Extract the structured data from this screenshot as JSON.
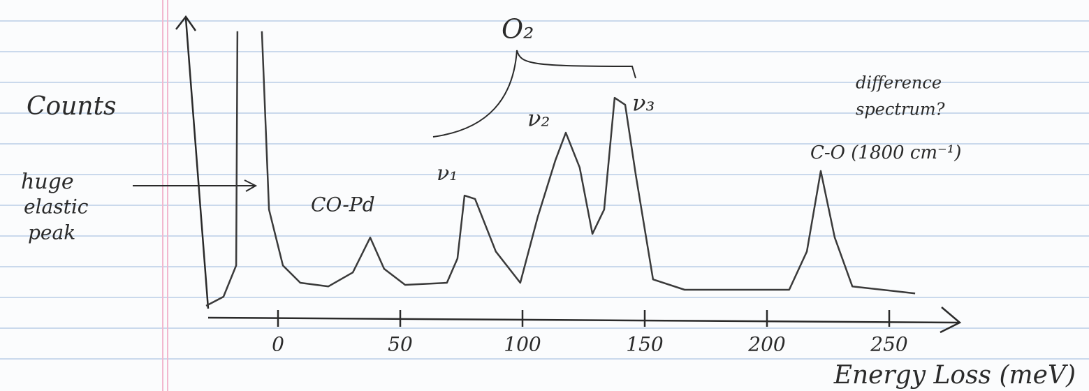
{
  "chart_data": {
    "type": "line",
    "y_label": "Counts",
    "x_label": "Energy Loss (meV)",
    "annotations": [
      "huge",
      "elastic",
      "peak",
      "CO-Pd",
      "ν₁",
      "ν₂",
      "ν₃",
      "O₂",
      "difference",
      "spectrum?",
      "C-O (1800 cm⁻¹)"
    ],
    "x": [
      -29.4,
      -22.3,
      -17.1,
      -16.6,
      -12,
      -6.6,
      -3.7,
      2,
      9.1,
      20.6,
      30.6,
      37.7,
      43.4,
      52,
      69.1,
      73.4,
      76.3,
      80.6,
      89.1,
      99.1,
      106.3,
      113.4,
      117.7,
      123.4,
      128.6,
      133.4,
      137.7,
      142,
      146.3,
      153.4,
      166.3,
      209.1,
      216.3,
      222,
      227.7,
      234.9,
      260.6
    ],
    "values": [
      3.9,
      6.9,
      17.2,
      94.3,
      null,
      94.3,
      35.6,
      17.2,
      11.5,
      10.3,
      14.9,
      26.4,
      16.1,
      10.8,
      11.5,
      19.5,
      40.2,
      39.1,
      21.8,
      11.5,
      33.3,
      51.7,
      60.9,
      49.4,
      27.6,
      35.6,
      72.4,
      70.1,
      47.1,
      12.6,
      9.2,
      9.2,
      21.8,
      48.3,
      26.4,
      10.3,
      8.0
    ],
    "color": "#3a3a3a",
    "xlim": [
      -30,
      280
    ],
    "xticks": [
      0,
      50,
      100,
      150,
      200,
      250
    ],
    "ylim": [
      0,
      100
    ]
  }
}
